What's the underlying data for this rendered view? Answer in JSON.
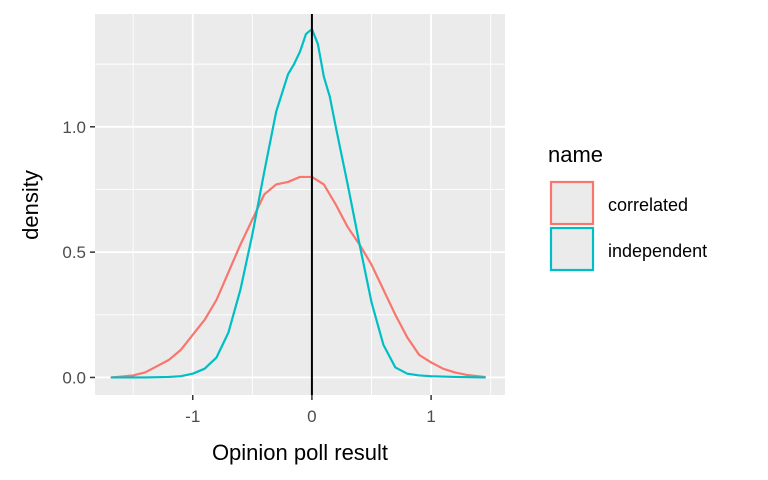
{
  "chart_data": {
    "type": "line",
    "title": "",
    "xlabel": "Opinion poll result",
    "ylabel": "density",
    "xlim": [
      -1.82,
      1.62
    ],
    "ylim": [
      -0.07,
      1.45
    ],
    "x_ticks": [
      -1,
      0,
      1
    ],
    "x_tick_labels": [
      "-1",
      "0",
      "1"
    ],
    "x_minor_ticks": [
      -1.5,
      -0.5,
      0.5,
      1.5
    ],
    "y_ticks": [
      0.0,
      0.5,
      1.0
    ],
    "y_tick_labels": [
      "0.0",
      "0.5",
      "1.0"
    ],
    "y_minor_ticks": [
      0.25,
      0.75,
      1.25
    ],
    "grid": true,
    "vline_x": 0,
    "legend": {
      "title": "name",
      "position": "right"
    },
    "series": [
      {
        "name": "correlated",
        "color": "#F8766D",
        "x": [
          -1.68,
          -1.5,
          -1.4,
          -1.3,
          -1.2,
          -1.1,
          -1.0,
          -0.9,
          -0.8,
          -0.7,
          -0.6,
          -0.5,
          -0.4,
          -0.3,
          -0.2,
          -0.1,
          0.0,
          0.1,
          0.2,
          0.3,
          0.4,
          0.5,
          0.6,
          0.7,
          0.8,
          0.9,
          1.0,
          1.1,
          1.2,
          1.3,
          1.45
        ],
        "y": [
          0.0,
          0.008,
          0.02,
          0.045,
          0.07,
          0.11,
          0.17,
          0.23,
          0.31,
          0.42,
          0.53,
          0.63,
          0.73,
          0.77,
          0.78,
          0.8,
          0.8,
          0.77,
          0.69,
          0.6,
          0.53,
          0.45,
          0.35,
          0.25,
          0.16,
          0.09,
          0.06,
          0.035,
          0.02,
          0.01,
          0.002
        ]
      },
      {
        "name": "independent",
        "color": "#00BFC4",
        "x": [
          -1.68,
          -1.4,
          -1.2,
          -1.1,
          -1.0,
          -0.9,
          -0.8,
          -0.7,
          -0.6,
          -0.5,
          -0.4,
          -0.3,
          -0.2,
          -0.15,
          -0.1,
          -0.05,
          0.0,
          0.05,
          0.1,
          0.15,
          0.2,
          0.3,
          0.4,
          0.5,
          0.6,
          0.7,
          0.8,
          0.9,
          1.0,
          1.2,
          1.45
        ],
        "y": [
          0.0,
          0.0,
          0.002,
          0.005,
          0.015,
          0.035,
          0.08,
          0.18,
          0.35,
          0.57,
          0.82,
          1.06,
          1.21,
          1.25,
          1.3,
          1.37,
          1.39,
          1.33,
          1.2,
          1.12,
          1.0,
          0.77,
          0.53,
          0.3,
          0.13,
          0.04,
          0.015,
          0.008,
          0.005,
          0.002,
          0.0
        ]
      }
    ]
  }
}
